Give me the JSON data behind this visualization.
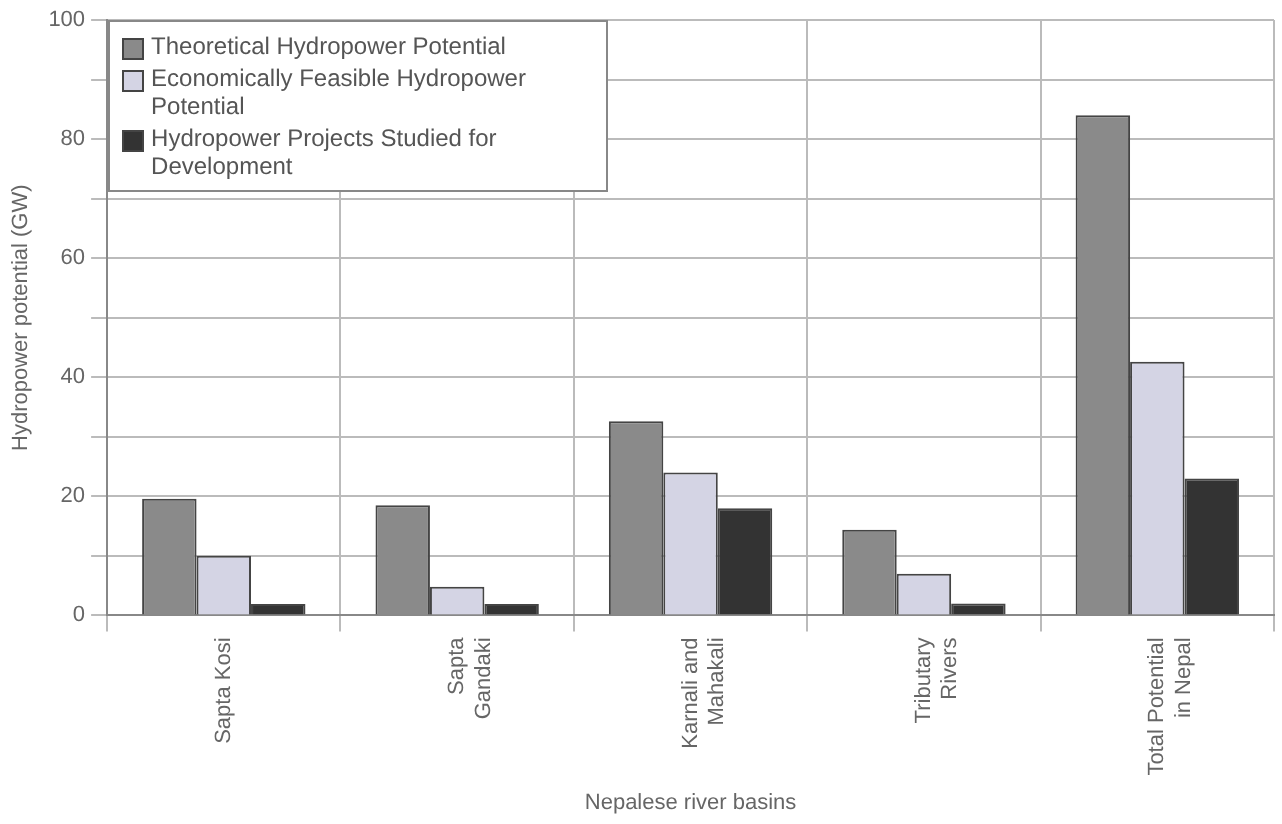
{
  "chart_data": {
    "type": "bar",
    "xlabel": "Nepalese river basins",
    "ylabel": "Hydropower potential (GW)",
    "categories": [
      "Sapta Kosi",
      "Sapta Gandaki",
      "Karnali and Mahakali",
      "Tributary Rivers",
      "Total Potential in Nepal"
    ],
    "series": [
      {
        "name": "Theoretical Hydropower Potential",
        "color": "#8a8a8a",
        "values": [
          19.6,
          18.5,
          32.6,
          14.4,
          84
        ]
      },
      {
        "name": "Economically Feasible Hydropower Potential",
        "color": "#d4d4e4",
        "values": [
          10,
          4.8,
          24,
          7,
          42.6
        ]
      },
      {
        "name": "Hydropower Projects Studied for Development",
        "color": "#333333",
        "values": [
          1.9,
          1.9,
          18,
          2,
          23
        ]
      }
    ],
    "ylim": [
      0,
      100
    ],
    "yticks": [
      0,
      {
        "value": 10,
        "label": null
      },
      20,
      {
        "value": 30,
        "label": null
      },
      40,
      {
        "value": 50,
        "label": null
      },
      60,
      {
        "value": 70,
        "label": null
      },
      80,
      {
        "value": 90,
        "label": null
      },
      100
    ],
    "grid": true,
    "legend": "top left"
  }
}
